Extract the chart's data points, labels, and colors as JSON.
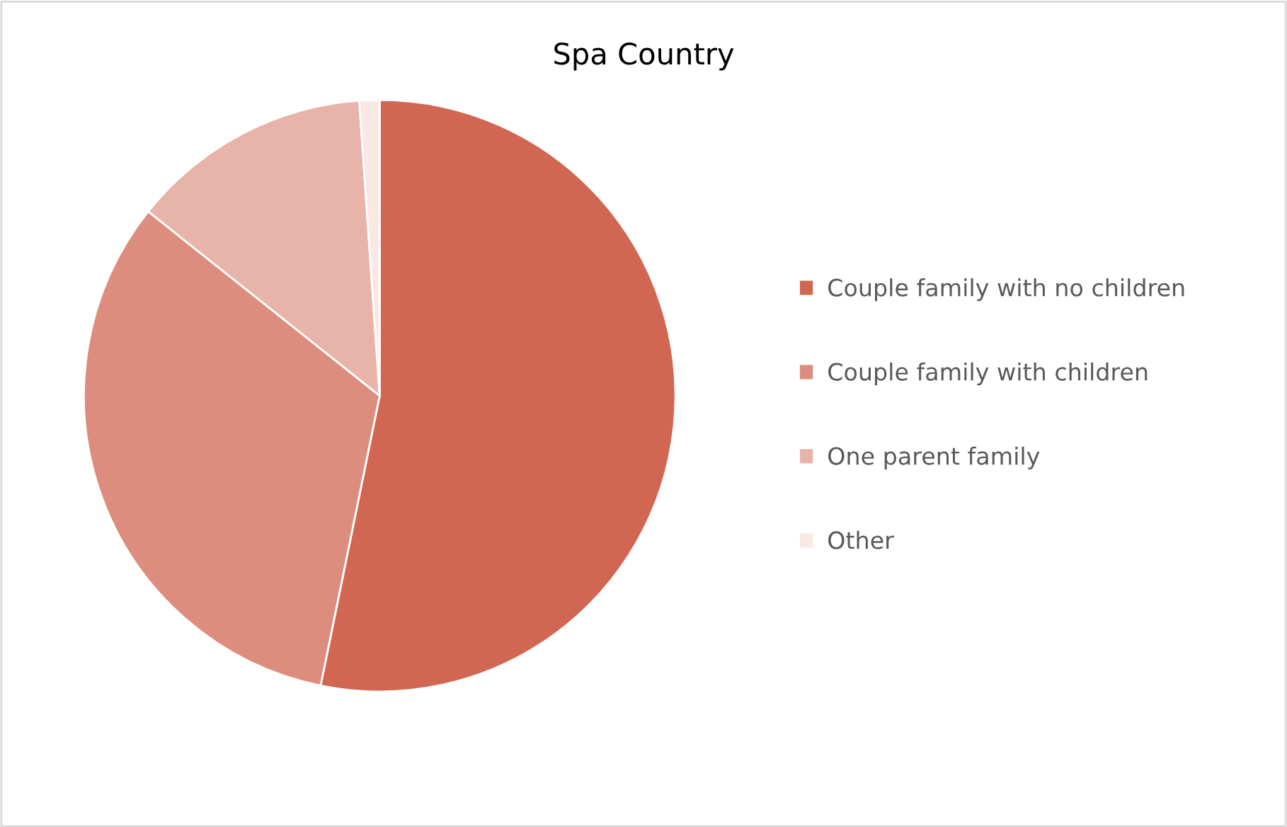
{
  "chart_data": {
    "type": "pie",
    "title": "Spa Country",
    "categories": [
      "Couple family with no children",
      "Couple family with children",
      "One parent family",
      "Other"
    ],
    "values": [
      53.2,
      32.5,
      13.2,
      1.1
    ],
    "colors": [
      "#d16752",
      "#dd8d7d",
      "#e8b3a9",
      "#f9e8e4"
    ],
    "legend": "right"
  }
}
